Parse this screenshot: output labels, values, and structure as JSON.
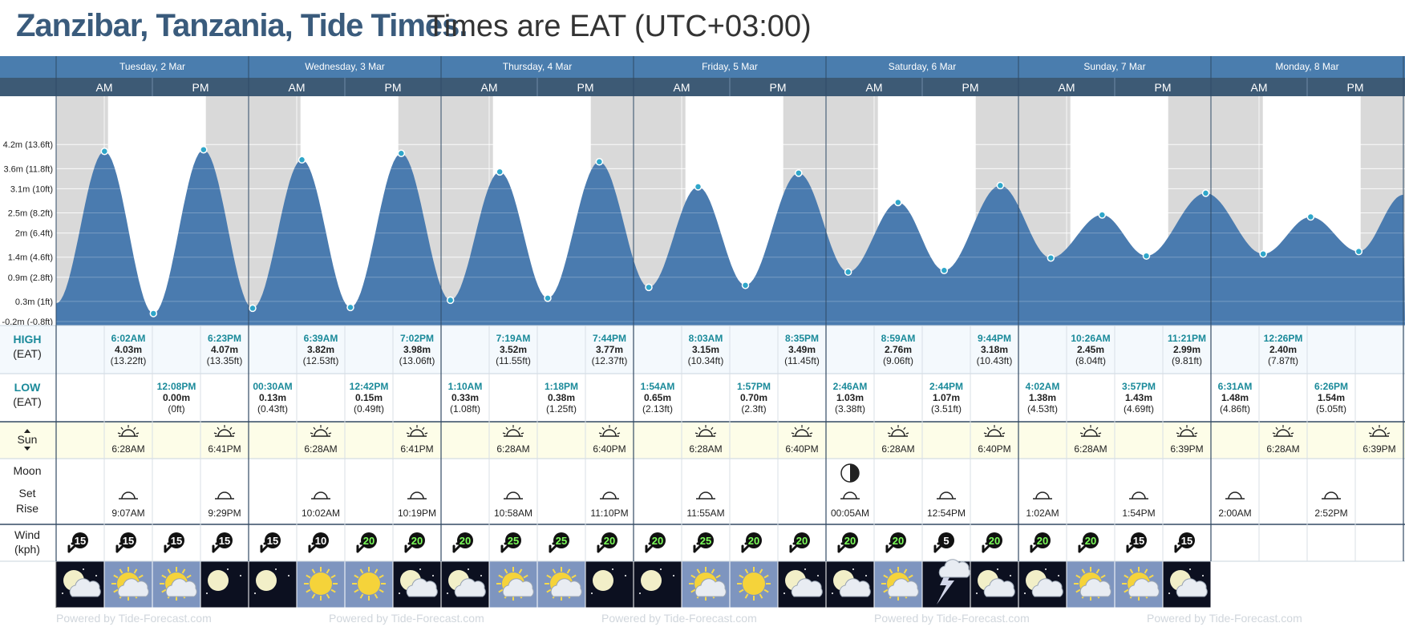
{
  "header": {
    "title": "Zanzibar, Tanzania, Tide Times.",
    "subtitle": "Times are EAT (UTC+03:00)"
  },
  "days": [
    "Tuesday, 2 Mar",
    "Wednesday, 3 Mar",
    "Thursday, 4 Mar",
    "Friday, 5 Mar",
    "Saturday, 6 Mar",
    "Sunday, 7 Mar",
    "Monday, 8 Mar"
  ],
  "ampm": [
    "AM",
    "PM"
  ],
  "row_labels": {
    "high": [
      "HIGH",
      "(EAT)"
    ],
    "low": [
      "LOW",
      "(EAT)"
    ],
    "sun": "Sun",
    "moon": "Moon",
    "set": "Set",
    "rise": "Rise",
    "wind": [
      "Wind",
      "(kph)"
    ]
  },
  "colors": {
    "header": "#4a7dae",
    "subheader": "#3d5a75",
    "fill": "#4a7baf",
    "night": "#d9d9d9",
    "sunrow": "#fdfde8",
    "teal": "#1a8a9a"
  },
  "chart_data": {
    "type": "area",
    "ylabel_ticks": [
      "4.2m (13.6ft)",
      "3.6m (11.8ft)",
      "3.1m (10ft)",
      "2.5m (8.2ft)",
      "2m (6.4ft)",
      "1.4m (4.6ft)",
      "0.9m (2.8ft)",
      "0.3m (1ft)",
      "-0.2m (-0.8ft)"
    ],
    "ytick_values": [
      4.2,
      3.6,
      3.1,
      2.5,
      2.0,
      1.4,
      0.9,
      0.3,
      -0.2
    ],
    "ylim": [
      -0.3,
      5.4
    ],
    "xlim_hours": [
      0,
      168
    ],
    "tides": [
      {
        "t": "00:00",
        "h": 0.25
      },
      {
        "t": "06:02",
        "h": 4.03
      },
      {
        "t": "12:08",
        "h": 0.0
      },
      {
        "t": "18:23",
        "h": 4.07
      },
      {
        "t": "00:30",
        "h": 0.13
      },
      {
        "t": "06:39",
        "h": 3.82
      },
      {
        "t": "12:42",
        "h": 0.15
      },
      {
        "t": "19:02",
        "h": 3.98
      },
      {
        "t": "01:10",
        "h": 0.33
      },
      {
        "t": "07:19",
        "h": 3.52
      },
      {
        "t": "13:18",
        "h": 0.38
      },
      {
        "t": "19:44",
        "h": 3.77
      },
      {
        "t": "01:54",
        "h": 0.65
      },
      {
        "t": "08:03",
        "h": 3.15
      },
      {
        "t": "13:57",
        "h": 0.7
      },
      {
        "t": "20:35",
        "h": 3.49
      },
      {
        "t": "02:46",
        "h": 1.03
      },
      {
        "t": "08:59",
        "h": 2.76
      },
      {
        "t": "14:44",
        "h": 1.07
      },
      {
        "t": "21:44",
        "h": 3.18
      },
      {
        "t": "04:02",
        "h": 1.38
      },
      {
        "t": "10:26",
        "h": 2.45
      },
      {
        "t": "15:57",
        "h": 1.43
      },
      {
        "t": "23:21",
        "h": 2.99
      },
      {
        "t": "06:31",
        "h": 1.48
      },
      {
        "t": "12:26",
        "h": 2.4
      },
      {
        "t": "18:26",
        "h": 1.54
      },
      {
        "t": "23:59",
        "h": 2.95
      }
    ],
    "highs": [
      {
        "col": 1,
        "time": "6:02AM",
        "m": "4.03m",
        "ft": "(13.22ft)"
      },
      {
        "col": 3,
        "time": "6:23PM",
        "m": "4.07m",
        "ft": "(13.35ft)"
      },
      {
        "col": 5,
        "time": "6:39AM",
        "m": "3.82m",
        "ft": "(12.53ft)"
      },
      {
        "col": 7,
        "time": "7:02PM",
        "m": "3.98m",
        "ft": "(13.06ft)"
      },
      {
        "col": 9,
        "time": "7:19AM",
        "m": "3.52m",
        "ft": "(11.55ft)"
      },
      {
        "col": 11,
        "time": "7:44PM",
        "m": "3.77m",
        "ft": "(12.37ft)"
      },
      {
        "col": 13,
        "time": "8:03AM",
        "m": "3.15m",
        "ft": "(10.34ft)"
      },
      {
        "col": 15,
        "time": "8:35PM",
        "m": "3.49m",
        "ft": "(11.45ft)"
      },
      {
        "col": 17,
        "time": "8:59AM",
        "m": "2.76m",
        "ft": "(9.06ft)"
      },
      {
        "col": 19,
        "time": "9:44PM",
        "m": "3.18m",
        "ft": "(10.43ft)"
      },
      {
        "col": 21,
        "time": "10:26AM",
        "m": "2.45m",
        "ft": "(8.04ft)"
      },
      {
        "col": 23,
        "time": "11:21PM",
        "m": "2.99m",
        "ft": "(9.81ft)"
      },
      {
        "col": 25,
        "time": "12:26PM",
        "m": "2.40m",
        "ft": "(7.87ft)"
      }
    ],
    "lows": [
      {
        "col": 2,
        "time": "12:08PM",
        "m": "0.00m",
        "ft": "(0ft)"
      },
      {
        "col": 4,
        "time": "00:30AM",
        "m": "0.13m",
        "ft": "(0.43ft)"
      },
      {
        "col": 6,
        "time": "12:42PM",
        "m": "0.15m",
        "ft": "(0.49ft)"
      },
      {
        "col": 8,
        "time": "1:10AM",
        "m": "0.33m",
        "ft": "(1.08ft)"
      },
      {
        "col": 10,
        "time": "1:18PM",
        "m": "0.38m",
        "ft": "(1.25ft)"
      },
      {
        "col": 12,
        "time": "1:54AM",
        "m": "0.65m",
        "ft": "(2.13ft)"
      },
      {
        "col": 14,
        "time": "1:57PM",
        "m": "0.70m",
        "ft": "(2.3ft)"
      },
      {
        "col": 16,
        "time": "2:46AM",
        "m": "1.03m",
        "ft": "(3.38ft)"
      },
      {
        "col": 18,
        "time": "2:44PM",
        "m": "1.07m",
        "ft": "(3.51ft)"
      },
      {
        "col": 20,
        "time": "4:02AM",
        "m": "1.38m",
        "ft": "(4.53ft)"
      },
      {
        "col": 22,
        "time": "3:57PM",
        "m": "1.43m",
        "ft": "(4.69ft)"
      },
      {
        "col": 24,
        "time": "6:31AM",
        "m": "1.48m",
        "ft": "(4.86ft)"
      },
      {
        "col": 26,
        "time": "6:26PM",
        "m": "1.54m",
        "ft": "(5.05ft)"
      }
    ],
    "sun": [
      {
        "col": 1,
        "type": "rise",
        "time": "6:28AM"
      },
      {
        "col": 3,
        "type": "set",
        "time": "6:41PM"
      },
      {
        "col": 5,
        "type": "rise",
        "time": "6:28AM"
      },
      {
        "col": 7,
        "type": "set",
        "time": "6:41PM"
      },
      {
        "col": 9,
        "type": "rise",
        "time": "6:28AM"
      },
      {
        "col": 11,
        "type": "set",
        "time": "6:40PM"
      },
      {
        "col": 13,
        "type": "rise",
        "time": "6:28AM"
      },
      {
        "col": 15,
        "type": "set",
        "time": "6:40PM"
      },
      {
        "col": 17,
        "type": "rise",
        "time": "6:28AM"
      },
      {
        "col": 19,
        "type": "set",
        "time": "6:40PM"
      },
      {
        "col": 21,
        "type": "rise",
        "time": "6:28AM"
      },
      {
        "col": 23,
        "type": "set",
        "time": "6:39PM"
      },
      {
        "col": 25,
        "type": "rise",
        "time": "6:28AM"
      },
      {
        "col": 27,
        "type": "set",
        "time": "6:39PM"
      }
    ],
    "moon": [
      {
        "col": 1,
        "type": "set",
        "time": "9:07AM"
      },
      {
        "col": 3,
        "type": "rise",
        "time": "9:29PM"
      },
      {
        "col": 5,
        "type": "set",
        "time": "10:02AM"
      },
      {
        "col": 7,
        "type": "rise",
        "time": "10:19PM"
      },
      {
        "col": 9,
        "type": "set",
        "time": "10:58AM"
      },
      {
        "col": 11,
        "type": "rise",
        "time": "11:10PM"
      },
      {
        "col": 13,
        "type": "set",
        "time": "11:55AM"
      },
      {
        "col": 16,
        "type": "rise",
        "time": "00:05AM",
        "phase": "last-quarter"
      },
      {
        "col": 18,
        "type": "set",
        "time": "12:54PM"
      },
      {
        "col": 20,
        "type": "rise",
        "time": "1:02AM"
      },
      {
        "col": 22,
        "type": "set",
        "time": "1:54PM"
      },
      {
        "col": 24,
        "type": "rise",
        "time": "2:00AM"
      },
      {
        "col": 26,
        "type": "set",
        "time": "2:52PM"
      }
    ],
    "wind": [
      15,
      15,
      15,
      15,
      15,
      10,
      20,
      20,
      20,
      25,
      25,
      20,
      20,
      25,
      20,
      20,
      20,
      20,
      5,
      20,
      20,
      20,
      15,
      15
    ],
    "weather": [
      "moon-cloud",
      "sun-cloud",
      "sun-cloud",
      "moon",
      "moon",
      "sun",
      "sun",
      "moon-cloud",
      "moon-cloud",
      "sun-cloud",
      "sun-cloud",
      "moon",
      "moon",
      "sun-cloud",
      "sun",
      "moon-cloud",
      "moon-cloud",
      "sun-cloud",
      "storm",
      "moon-cloud",
      "moon-cloud",
      "sun-cloud",
      "sun-cloud",
      "moon-cloud"
    ],
    "footer": "Powered by Tide-Forecast.com"
  }
}
